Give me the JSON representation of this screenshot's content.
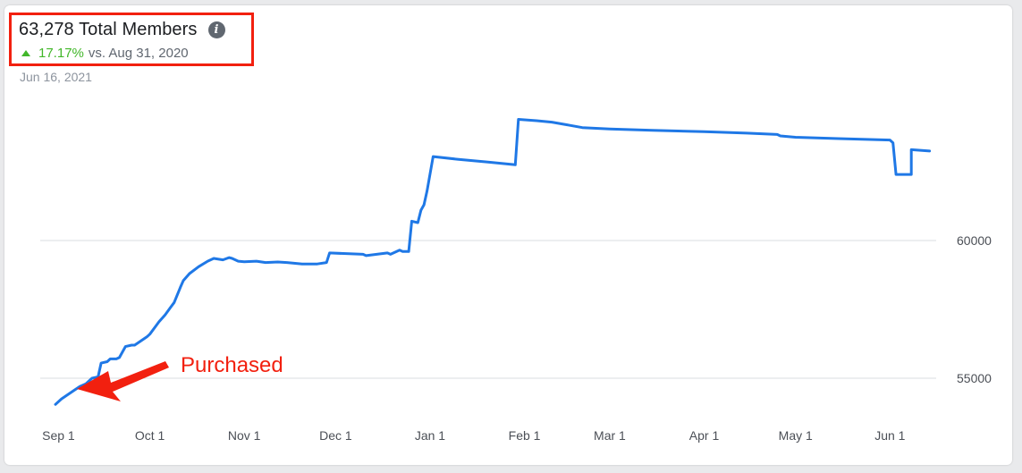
{
  "header": {
    "title": "63,278 Total Members",
    "change_pct": "17.17%",
    "change_vs": "vs. Aug 31, 2020",
    "date": "Jun 16, 2021"
  },
  "annotation": {
    "text": "Purchased"
  },
  "icons": {
    "info": "info-icon",
    "trend": "up-arrow-icon"
  },
  "colors": {
    "line": "#1f78e6",
    "accent": "#f2200f",
    "positive": "#42b72a"
  },
  "chart_data": {
    "type": "line",
    "title": "",
    "xlabel": "",
    "ylabel": "",
    "x_tick_labels": [
      "Sep 1",
      "Oct 1",
      "Nov 1",
      "Dec 1",
      "Jan 1",
      "Feb 1",
      "Mar 1",
      "Apr 1",
      "May 1",
      "Jun 1"
    ],
    "x_tick_dates": [
      "2020-09-01",
      "2020-10-01",
      "2020-11-01",
      "2020-12-01",
      "2021-01-01",
      "2021-02-01",
      "2021-03-01",
      "2021-04-01",
      "2021-05-01",
      "2021-06-01"
    ],
    "y_tick_labels": [
      "55000",
      "60000"
    ],
    "y_ticks": [
      55000,
      60000
    ],
    "ylim": [
      53950,
      64900
    ],
    "grid": true,
    "series": [
      {
        "x": [
          "2020-08-31",
          "2020-09-02",
          "2020-09-04",
          "2020-09-06",
          "2020-09-08",
          "2020-09-10",
          "2020-09-11",
          "2020-09-12",
          "2020-09-14",
          "2020-09-15",
          "2020-09-17",
          "2020-09-18",
          "2020-09-20",
          "2020-09-21",
          "2020-09-23",
          "2020-09-25",
          "2020-09-26",
          "2020-09-28",
          "2020-09-30",
          "2020-10-01",
          "2020-10-03",
          "2020-10-04",
          "2020-10-06",
          "2020-10-08",
          "2020-10-09",
          "2020-10-11",
          "2020-10-12",
          "2020-10-14",
          "2020-10-17",
          "2020-10-20",
          "2020-10-22",
          "2020-10-25",
          "2020-10-27",
          "2020-10-28",
          "2020-10-30",
          "2020-11-01",
          "2020-11-05",
          "2020-11-08",
          "2020-11-12",
          "2020-11-15",
          "2020-11-20",
          "2020-11-25",
          "2020-11-28",
          "2020-11-29",
          "2020-12-10",
          "2020-12-11",
          "2020-12-18",
          "2020-12-19",
          "2020-12-22",
          "2020-12-23",
          "2020-12-25",
          "2020-12-26",
          "2020-12-28",
          "2020-12-29",
          "2020-12-30",
          "2020-12-31",
          "2021-01-02",
          "2021-01-10",
          "2021-01-20",
          "2021-01-29",
          "2021-01-30",
          "2021-02-05",
          "2021-02-10",
          "2021-02-15",
          "2021-02-20",
          "2021-03-01",
          "2021-03-15",
          "2021-04-01",
          "2021-04-15",
          "2021-04-25",
          "2021-04-26",
          "2021-05-01",
          "2021-05-15",
          "2021-06-01",
          "2021-06-02",
          "2021-06-03",
          "2021-06-05",
          "2021-06-08",
          "2021-06-08",
          "2021-06-14"
        ],
        "y": [
          54050,
          54250,
          54400,
          54550,
          54700,
          54800,
          54900,
          55000,
          55050,
          55550,
          55600,
          55700,
          55700,
          55750,
          56150,
          56200,
          56200,
          56350,
          56500,
          56600,
          56900,
          57050,
          57300,
          57600,
          57750,
          58300,
          58550,
          58800,
          59050,
          59250,
          59350,
          59300,
          59380,
          59350,
          59250,
          59230,
          59250,
          59200,
          59220,
          59200,
          59150,
          59150,
          59200,
          59550,
          59500,
          59450,
          59550,
          59500,
          59650,
          59600,
          59600,
          60700,
          60650,
          61100,
          61300,
          61800,
          63050,
          62950,
          62850,
          62750,
          64400,
          64350,
          64300,
          64200,
          64100,
          64050,
          64000,
          63950,
          63900,
          63850,
          63800,
          63750,
          63700,
          63650,
          63550,
          62400,
          62400,
          62400,
          63300,
          63250
        ]
      }
    ]
  }
}
